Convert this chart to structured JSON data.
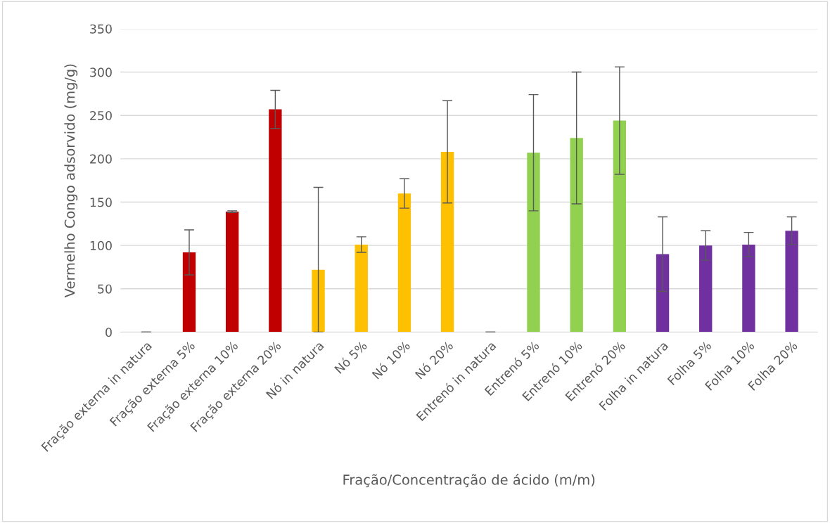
{
  "chart_data": {
    "type": "bar",
    "xlabel": "Fração/Concentração de ácido (m/m)",
    "ylabel": "Vermelho Congo adsorvido (mg/g)",
    "categories": [
      "Fração externa in natura",
      "Fração externa 5%",
      "Fração externa 10%",
      "Fração externa 20%",
      "Nó in natura",
      "Nó 5%",
      "Nó 10%",
      "Nó 20%",
      "Entrenó in natura",
      "Entrenó 5%",
      "Entrenó 10%",
      "Entrenó 20%",
      "Folha in natura",
      "Folha 5%",
      "Folha 10%",
      "Folha 20%"
    ],
    "values": [
      0,
      92,
      139,
      257,
      72,
      101,
      160,
      208,
      0,
      207,
      224,
      244,
      90,
      100,
      101,
      117
    ],
    "errors": [
      0,
      26,
      1,
      22,
      [
        0,
        167
      ],
      9,
      17,
      59,
      0,
      67,
      76,
      62,
      43,
      17,
      14,
      16
    ],
    "colors": [
      "#c00000",
      "#c00000",
      "#c00000",
      "#c00000",
      "#ffc000",
      "#ffc000",
      "#ffc000",
      "#ffc000",
      "#92d050",
      "#92d050",
      "#92d050",
      "#92d050",
      "#7030a0",
      "#7030a0",
      "#7030a0",
      "#7030a0"
    ],
    "ylim": [
      0,
      350
    ],
    "yticks": [
      0,
      50,
      100,
      150,
      200,
      250,
      300,
      350
    ],
    "grid": "y"
  }
}
